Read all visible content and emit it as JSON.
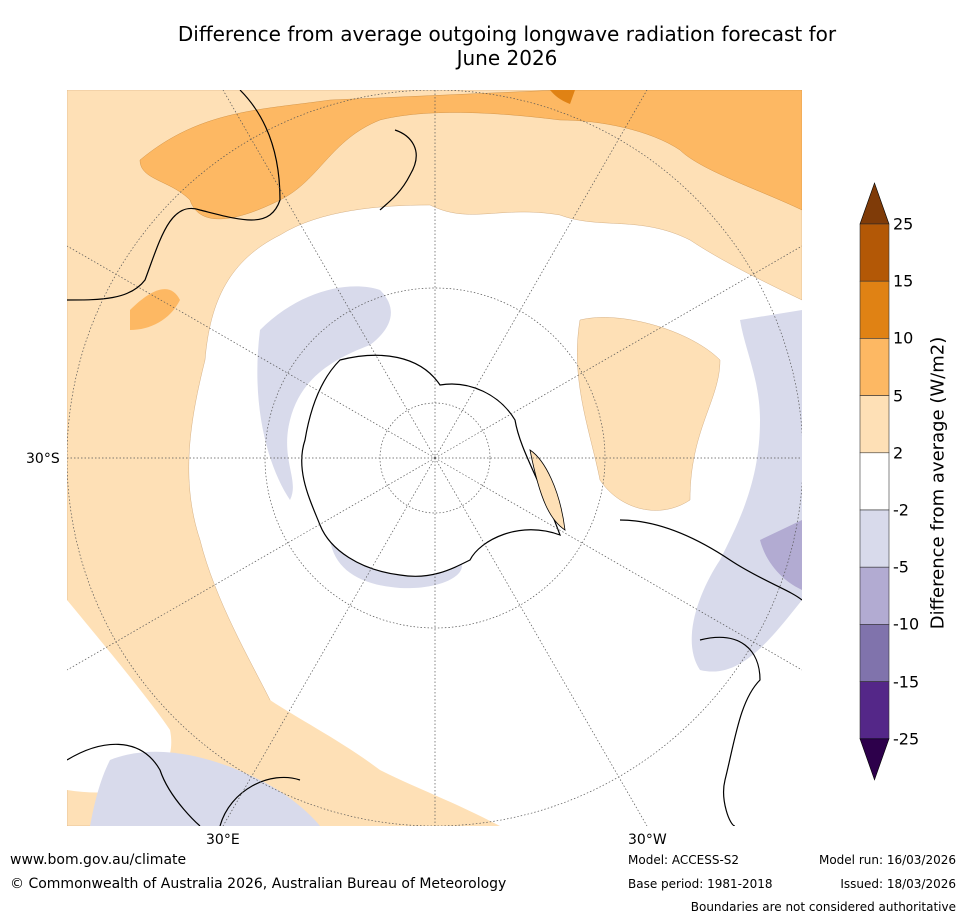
{
  "title_line1": "Difference from average outgoing longwave radiation forecast for",
  "title_line2": "June 2026",
  "map": {
    "lat_label": "30°S",
    "lon_label_left": "30°E",
    "lon_label_right": "30°W"
  },
  "colorbar": {
    "title": "Difference from average (W/m2)",
    "labels": [
      "25",
      "15",
      "10",
      "5",
      "2",
      "-2",
      "-5",
      "-10",
      "-15",
      "-25"
    ],
    "colors": [
      "#b35806",
      "#e08214",
      "#fdb863",
      "#fee0b6",
      "#ffffff",
      "#d8daeb",
      "#b2abd2",
      "#8073ac",
      "#542788"
    ],
    "over_color": "#7f3b08",
    "under_color": "#2d004b"
  },
  "footer": {
    "website": "www.bom.gov.au/climate",
    "copyright": "© Commonwealth of Australia 2026, Australian Bureau of Meteorology",
    "model": "Model: ACCESS-S2",
    "base_period": "Base period: 1981-2018",
    "model_run": "Model run: 16/03/2026",
    "issued": "Issued: 18/03/2026",
    "disclaimer": "Boundaries are not considered authoritative"
  }
}
